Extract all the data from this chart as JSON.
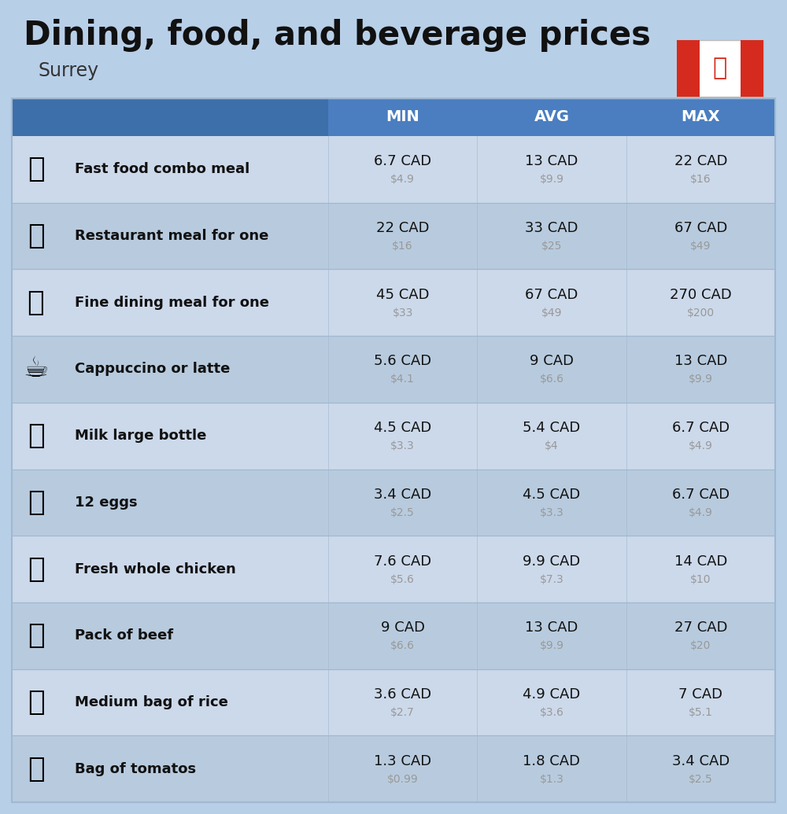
{
  "title": "Dining, food, and beverage prices",
  "subtitle": "Surrey",
  "background_color": "#b8cfe8",
  "header_color": "#4a7ec0",
  "header_text_color": "#ffffff",
  "row_color_light": "#ccd9ea",
  "row_color_dark": "#b8cbde",
  "divider_color": "#a0b8d0",
  "columns": [
    "MIN",
    "AVG",
    "MAX"
  ],
  "rows": [
    {
      "label": "Fast food combo meal",
      "min_cad": "6.7 CAD",
      "min_usd": "$4.9",
      "avg_cad": "13 CAD",
      "avg_usd": "$9.9",
      "max_cad": "22 CAD",
      "max_usd": "$16"
    },
    {
      "label": "Restaurant meal for one",
      "min_cad": "22 CAD",
      "min_usd": "$16",
      "avg_cad": "33 CAD",
      "avg_usd": "$25",
      "max_cad": "67 CAD",
      "max_usd": "$49"
    },
    {
      "label": "Fine dining meal for one",
      "min_cad": "45 CAD",
      "min_usd": "$33",
      "avg_cad": "67 CAD",
      "avg_usd": "$49",
      "max_cad": "270 CAD",
      "max_usd": "$200"
    },
    {
      "label": "Cappuccino or latte",
      "min_cad": "5.6 CAD",
      "min_usd": "$4.1",
      "avg_cad": "9 CAD",
      "avg_usd": "$6.6",
      "max_cad": "13 CAD",
      "max_usd": "$9.9"
    },
    {
      "label": "Milk large bottle",
      "min_cad": "4.5 CAD",
      "min_usd": "$3.3",
      "avg_cad": "5.4 CAD",
      "avg_usd": "$4",
      "max_cad": "6.7 CAD",
      "max_usd": "$4.9"
    },
    {
      "label": "12 eggs",
      "min_cad": "3.4 CAD",
      "min_usd": "$2.5",
      "avg_cad": "4.5 CAD",
      "avg_usd": "$3.3",
      "max_cad": "6.7 CAD",
      "max_usd": "$4.9"
    },
    {
      "label": "Fresh whole chicken",
      "min_cad": "7.6 CAD",
      "min_usd": "$5.6",
      "avg_cad": "9.9 CAD",
      "avg_usd": "$7.3",
      "max_cad": "14 CAD",
      "max_usd": "$10"
    },
    {
      "label": "Pack of beef",
      "min_cad": "9 CAD",
      "min_usd": "$6.6",
      "avg_cad": "13 CAD",
      "avg_usd": "$9.9",
      "max_cad": "27 CAD",
      "max_usd": "$20"
    },
    {
      "label": "Medium bag of rice",
      "min_cad": "3.6 CAD",
      "min_usd": "$2.7",
      "avg_cad": "4.9 CAD",
      "avg_usd": "$3.6",
      "max_cad": "7 CAD",
      "max_usd": "$5.1"
    },
    {
      "label": "Bag of tomatos",
      "min_cad": "1.3 CAD",
      "min_usd": "$0.99",
      "avg_cad": "1.8 CAD",
      "avg_usd": "$1.3",
      "max_cad": "3.4 CAD",
      "max_usd": "$2.5"
    }
  ],
  "icon_texts": [
    "🍔",
    "🍳",
    "🍽️",
    "☕",
    "🥛",
    "🥚",
    "🐔",
    "🥩",
    "🍚",
    "🍅"
  ],
  "title_fontsize": 30,
  "subtitle_fontsize": 17,
  "header_fontsize": 14,
  "label_fontsize": 13,
  "cad_fontsize": 13,
  "usd_fontsize": 10
}
